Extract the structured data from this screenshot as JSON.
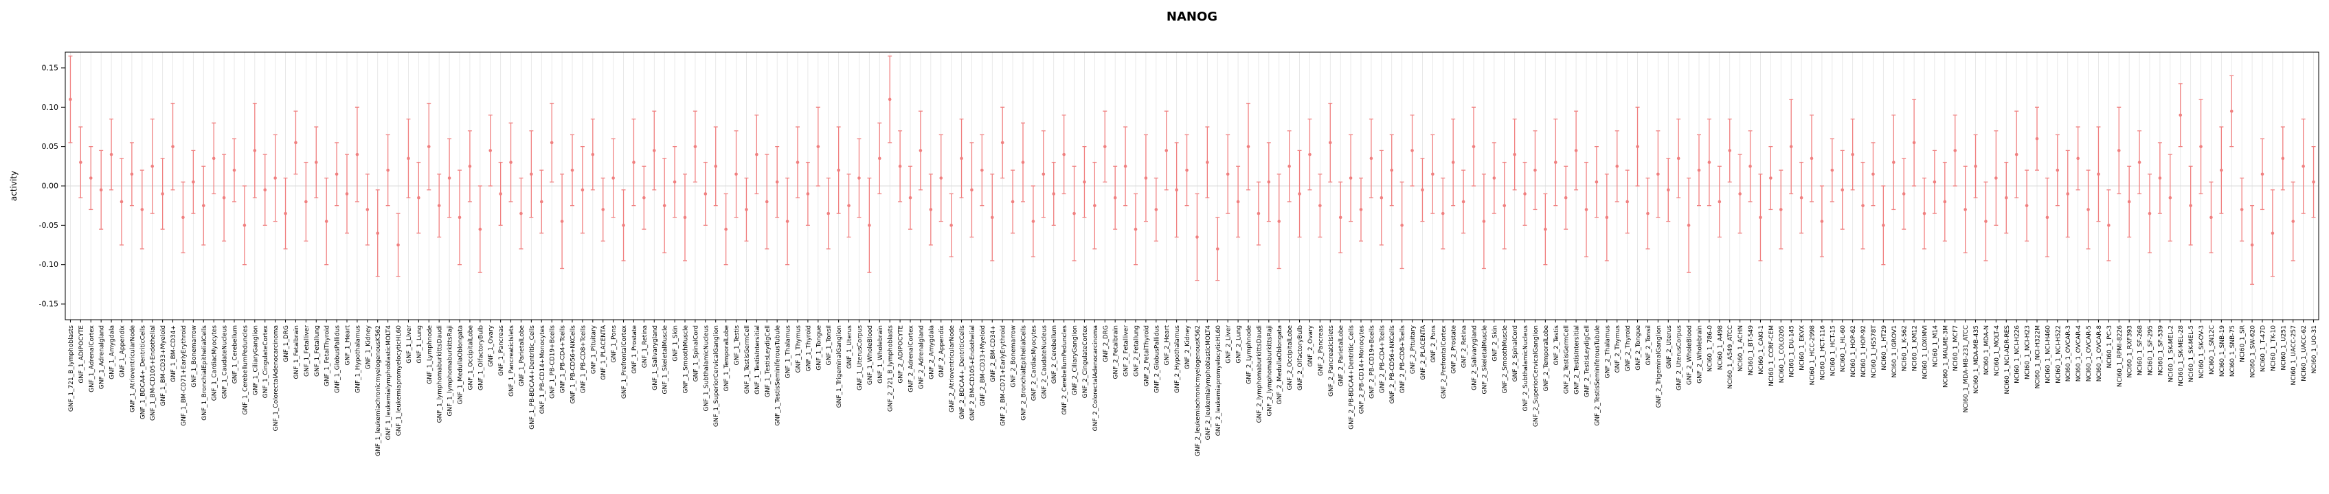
{
  "chart_data": {
    "type": "scatter",
    "title": "NANOG",
    "ylabel": "activity",
    "xlabel": "",
    "ylim": [
      -0.17,
      0.17
    ],
    "yticks": [
      -0.15,
      -0.1,
      -0.05,
      0.0,
      0.05,
      0.1,
      0.15
    ],
    "grid": true,
    "legend": "none",
    "point_color": "#f08080",
    "grid_color": "#e3e3e3",
    "axis_color": "#000000",
    "samples": [
      "GNF_1_721_B_lymphoblasts",
      "GNF_1_ADIPOCYTE",
      "GNF_1_AdrenalCortex",
      "GNF_1_Adrenalgland",
      "GNF_1_Amygdala",
      "GNF_1_Appendix",
      "GNF_1_AtrioventricularNode",
      "GNF_1_BDCA4+_DentriticCells",
      "GNF_1_BM-CD105+Endothelial",
      "GNF_1_BM-CD33+Myeloid",
      "GNF_1_BM-CD34+",
      "GNF_1_BM-CD71+EarlyErythroid",
      "GNF_1_Bonemarrow",
      "GNF_1_BronchialEpithelialCells",
      "GNF_1_CardiacMyocytes",
      "GNF_1_CaudateNucleus",
      "GNF_1_Cerebellum",
      "GNF_1_CerebellumPeduncles",
      "GNF_1_CiliaryGanglion",
      "GNF_1_CingulateCortex",
      "GNF_1_ColorectalAdenocarcinoma",
      "GNF_1_DRG",
      "GNF_1_Fetalbrain",
      "GNF_1_Fetalliver",
      "GNF_1_Fetallung",
      "GNF_1_FetalThyroid",
      "GNF_1_GlobusPallidus",
      "GNF_1_Heart",
      "GNF_1_Hypothalamus",
      "GNF_1_Kidney",
      "GNF_1_leukemiachronicmyelogenousK562",
      "GNF_1_leukemialymphoblasticMOLT4",
      "GNF_1_leukemiapromyelocyticHL60",
      "GNF_1_Liver",
      "GNF_1_Lung",
      "GNF_1_Lymphnode",
      "GNF_1_lymphomaburkittsDaudi",
      "GNF_1_lymphomaburkittsRaji",
      "GNF_1_MedullaOblongata",
      "GNF_1_OccipitalLobe",
      "GNF_1_OlfactoryBulb",
      "GNF_1_Ovary",
      "GNF_1_Pancreas",
      "GNF_1_PancreaticIslets",
      "GNF_1_ParietalLobe",
      "GNF_1_PB-BDCA4+Dentritic_Cells",
      "GNF_1_PB-CD14+Monocytes",
      "GNF_1_PB-CD19+Bcells",
      "GNF_1_PB-CD4+Tcells",
      "GNF_1_PB-CD56+NKCells",
      "GNF_1_PB-CD8+Tcells",
      "GNF_1_Pituitary",
      "GNF_1_PLACENTA",
      "GNF_1_Pons",
      "GNF_1_PrefrontalCortex",
      "GNF_1_Prostate",
      "GNF_1_Retina",
      "GNF_1_Salivarygland",
      "GNF_1_SkeletalMuscle",
      "GNF_1_Skin",
      "GNF_1_SmoothMuscle",
      "GNF_1_SpinalCord",
      "GNF_1_SubthalamicNucleus",
      "GNF_1_SuperiorCervicalGanglion",
      "GNF_1_TemporalLobe",
      "GNF_1_Testis",
      "GNF_1_TestisGermCell",
      "GNF_1_TestisIntersitial",
      "GNF_1_TestisLeydigCell",
      "GNF_1_TestisSeminiferousTubule",
      "GNF_1_Thalamus",
      "GNF_1_Thymus",
      "GNF_1_Thyroid",
      "GNF_1_Tongue",
      "GNF_1_Tonsil",
      "GNF_1_TrigeminalGanglion",
      "GNF_1_Uterus",
      "GNF_1_UterusCorpus",
      "GNF_1_WholeBlood",
      "GNF_1_Wholebrain",
      "GNF_2_721_B_lymphoblasts",
      "GNF_2_ADIPOCYTE",
      "GNF_2_AdrenalCortex",
      "GNF_2_Adrenalgland",
      "GNF_2_Amygdala",
      "GNF_2_Appendix",
      "GNF_2_AtrioventricularNode",
      "GNF_2_BDCA4+_DentriticCells",
      "GNF_2_BM-CD105+Endothelial",
      "GNF_2_BM-CD33+Myeloid",
      "GNF_2_BM-CD34+",
      "GNF_2_BM-CD71+EarlyErythroid",
      "GNF_2_Bonemarrow",
      "GNF_2_BronchialEpithelialCells",
      "GNF_2_CardiacMyocytes",
      "GNF_2_CaudateNucleus",
      "GNF_2_Cerebellum",
      "GNF_2_CerebellumPeduncles",
      "GNF_2_CiliaryGanglion",
      "GNF_2_CingulateCortex",
      "GNF_2_ColorectalAdenocarcinoma",
      "GNF_2_DRG",
      "GNF_2_Fetalbrain",
      "GNF_2_Fetalliver",
      "GNF_2_Fetallung",
      "GNF_2_FetalThyroid",
      "GNF_2_GlobusPallidus",
      "GNF_2_Heart",
      "GNF_2_Hypothalamus",
      "GNF_2_Kidney",
      "GNF_2_leukemiachronicmyelogenousK562",
      "GNF_2_leukemialymphoblasticMOLT4",
      "GNF_2_leukemiapromyelocyticHL60",
      "GNF_2_Liver",
      "GNF_2_Lung",
      "GNF_2_Lymphnode",
      "GNF_2_lymphomaburkittsDaudi",
      "GNF_2_lymphomaburkittsRaji",
      "GNF_2_MedullaOblongata",
      "GNF_2_OccipitalLobe",
      "GNF_2_OlfactoryBulb",
      "GNF_2_Ovary",
      "GNF_2_Pancreas",
      "GNF_2_PancreaticIslets",
      "GNF_2_ParietalLobe",
      "GNF_2_PB-BDCA4+Dentritic_Cells",
      "GNF_2_PB-CD14+Monocytes",
      "GNF_2_PB-CD19+Bcells",
      "GNF_2_PB-CD4+Tcells",
      "GNF_2_PB-CD56+NKCells",
      "GNF_2_PB-CD8+Tcells",
      "GNF_2_Pituitary",
      "GNF_2_PLACENTA",
      "GNF_2_Pons",
      "GNF_2_PrefrontalCortex",
      "GNF_2_Prostate",
      "GNF_2_Retina",
      "GNF_2_Salivarygland",
      "GNF_2_SkeletalMuscle",
      "GNF_2_Skin",
      "GNF_2_SmoothMuscle",
      "GNF_2_SpinalCord",
      "GNF_2_SubthalamicNucleus",
      "GNF_2_SuperiorCervicalGanglion",
      "GNF_2_TemporalLobe",
      "GNF_2_Testis",
      "GNF_2_TestisGermCell",
      "GNF_2_TestisIntersitial",
      "GNF_2_TestisLeydigCell",
      "GNF_2_TestisSeminiferousTubule",
      "GNF_2_Thalamus",
      "GNF_2_Thymus",
      "GNF_2_Thyroid",
      "GNF_2_Tongue",
      "GNF_2_Tonsil",
      "GNF_2_TrigeminalGanglion",
      "GNF_2_Uterus",
      "GNF_2_UterusCorpus",
      "GNF_2_WholeBlood",
      "GNF_2_Wholebrain",
      "NCI60_1_786-0",
      "NCI60_1_A498",
      "NCI60_1_A549_ATCC",
      "NCI60_1_ACHN",
      "NCI60_1_BT-549",
      "NCI60_1_CAKI-1",
      "NCI60_1_CCRF-CEM",
      "NCI60_1_COLO205",
      "NCI60_1_DU-145",
      "NCI60_1_EKVX",
      "NCI60_1_HCC-2998",
      "NCI60_1_HCT-116",
      "NCI60_1_HCT-15",
      "NCI60_1_HL-60",
      "NCI60_1_HOP-62",
      "NCI60_1_HOP-92",
      "NCI60_1_HS578T",
      "NCI60_1_HT29",
      "NCI60_1_IGROV1",
      "NCI60_1_K-562",
      "NCI60_1_KM12",
      "NCI60_1_LOXIMVI",
      "NCI60_1_M14",
      "NCI60_1_MALME-3M",
      "NCI60_1_MCF7",
      "NCI60_1_MDA-MB-231_ATCC",
      "NCI60_1_MDA-MB-435",
      "NCI60_1_MDA-N",
      "NCI60_1_MOLT-4",
      "NCI60_1_NCI-ADR-RES",
      "NCI60_1_NCI-H226",
      "NCI60_1_NCI-H23",
      "NCI60_1_NCI-H322M",
      "NCI60_1_NCI-H460",
      "NCI60_1_NCI-H522",
      "NCI60_1_OVCAR-3",
      "NCI60_1_OVCAR-4",
      "NCI60_1_OVCAR-5",
      "NCI60_1_OVCAR-8",
      "NCI60_1_PC-3",
      "NCI60_1_RPMI-8226",
      "NCI60_1_RXF393",
      "NCI60_1_SF-268",
      "NCI60_1_SF-295",
      "NCI60_1_SF-539",
      "NCI60_1_SK-MEL-2",
      "NCI60_1_SK-MEL-28",
      "NCI60_1_SK-MEL-5",
      "NCI60_1_SK-OV-3",
      "NCI60_1_SN12C",
      "NCI60_1_SNB-19",
      "NCI60_1_SNB-75",
      "NCI60_1_SR",
      "NCI60_1_SW-620",
      "NCI60_1_T-47D",
      "NCI60_1_TK-10",
      "NCI60_1_U251",
      "NCI60_1_UACC-257",
      "NCI60_1_UACC-62",
      "NCI60_1_UO-31"
    ],
    "values": [
      0.11,
      0.03,
      0.01,
      -0.005,
      0.04,
      -0.02,
      0.015,
      -0.03,
      0.025,
      -0.01,
      0.05,
      -0.04,
      0.005,
      -0.025,
      0.035,
      -0.015,
      0.02,
      -0.05,
      0.045,
      -0.005,
      0.01,
      -0.035,
      0.055,
      -0.02,
      0.03,
      -0.045,
      0.015,
      -0.01,
      0.04,
      -0.03,
      -0.06,
      0.02,
      -0.075,
      0.035,
      -0.015,
      0.05,
      -0.025,
      0.01,
      -0.04,
      0.025,
      -0.055,
      0.045,
      -0.01,
      0.03,
      -0.035,
      0.015,
      -0.02,
      0.055,
      -0.045,
      0.02,
      -0.005,
      0.04,
      -0.03,
      0.01,
      -0.05,
      0.03,
      -0.015,
      0.045,
      -0.025,
      0.005,
      -0.04,
      0.05,
      -0.01,
      0.025,
      -0.055,
      0.015,
      -0.03,
      0.04,
      -0.02,
      0.005,
      -0.045,
      0.03,
      -0.01,
      0.05,
      -0.035,
      0.02,
      -0.025,
      0.01,
      -0.05,
      0.035,
      0.11,
      0.025,
      -0.015,
      0.045,
      -0.03,
      0.01,
      -0.05,
      0.035,
      -0.005,
      0.02,
      -0.04,
      0.055,
      -0.02,
      0.03,
      -0.045,
      0.015,
      -0.01,
      0.04,
      -0.035,
      0.005,
      -0.025,
      0.05,
      -0.015,
      0.025,
      -0.055,
      0.01,
      -0.03,
      0.045,
      -0.005,
      0.02,
      -0.065,
      0.03,
      -0.08,
      0.015,
      -0.02,
      0.05,
      -0.035,
      0.005,
      -0.045,
      0.025,
      -0.01,
      0.04,
      -0.025,
      0.055,
      -0.04,
      0.01,
      -0.03,
      0.035,
      -0.015,
      0.02,
      -0.05,
      0.045,
      -0.005,
      0.015,
      -0.035,
      0.03,
      -0.02,
      0.05,
      -0.045,
      0.01,
      -0.025,
      0.04,
      -0.01,
      0.02,
      -0.055,
      0.03,
      -0.015,
      0.045,
      -0.03,
      0.005,
      -0.04,
      0.025,
      -0.02,
      0.05,
      -0.035,
      0.015,
      -0.005,
      0.035,
      -0.05,
      0.02,
      0.03,
      -0.02,
      0.045,
      -0.01,
      0.025,
      -0.04,
      0.01,
      -0.03,
      0.05,
      -0.015,
      0.035,
      -0.045,
      0.02,
      -0.005,
      0.04,
      -0.025,
      0.015,
      -0.05,
      0.03,
      -0.01,
      0.055,
      -0.035,
      0.005,
      -0.02,
      0.045,
      -0.03,
      0.025,
      -0.045,
      0.01,
      -0.015,
      0.04,
      -0.025,
      0.06,
      -0.04,
      0.02,
      -0.01,
      0.035,
      -0.03,
      0.015,
      -0.05,
      0.045,
      -0.02,
      0.03,
      -0.035,
      0.01,
      -0.015,
      0.09,
      -0.025,
      0.05,
      -0.04,
      0.02,
      0.095,
      -0.03,
      -0.075,
      0.015,
      -0.06,
      0.035,
      -0.045,
      0.025,
      0.005
    ],
    "errors": [
      0.055,
      0.045,
      0.04,
      0.05,
      0.045,
      0.055,
      0.04,
      0.05,
      0.06,
      0.045,
      0.055,
      0.045,
      0.04,
      0.05,
      0.045,
      0.055,
      0.04,
      0.05,
      0.06,
      0.045,
      0.055,
      0.045,
      0.04,
      0.05,
      0.045,
      0.055,
      0.04,
      0.05,
      0.06,
      0.045,
      0.055,
      0.045,
      0.04,
      0.05,
      0.045,
      0.055,
      0.04,
      0.05,
      0.06,
      0.045,
      0.055,
      0.045,
      0.04,
      0.05,
      0.045,
      0.055,
      0.04,
      0.05,
      0.06,
      0.045,
      0.055,
      0.045,
      0.04,
      0.05,
      0.045,
      0.055,
      0.04,
      0.05,
      0.06,
      0.045,
      0.055,
      0.045,
      0.04,
      0.05,
      0.045,
      0.055,
      0.04,
      0.05,
      0.06,
      0.045,
      0.055,
      0.045,
      0.04,
      0.05,
      0.045,
      0.055,
      0.04,
      0.05,
      0.06,
      0.045,
      0.055,
      0.045,
      0.04,
      0.05,
      0.045,
      0.055,
      0.04,
      0.05,
      0.06,
      0.045,
      0.055,
      0.045,
      0.04,
      0.05,
      0.045,
      0.055,
      0.04,
      0.05,
      0.06,
      0.045,
      0.055,
      0.045,
      0.04,
      0.05,
      0.045,
      0.055,
      0.04,
      0.05,
      0.06,
      0.045,
      0.055,
      0.045,
      0.04,
      0.05,
      0.045,
      0.055,
      0.04,
      0.05,
      0.06,
      0.045,
      0.055,
      0.045,
      0.04,
      0.05,
      0.045,
      0.055,
      0.04,
      0.05,
      0.06,
      0.045,
      0.055,
      0.045,
      0.04,
      0.05,
      0.045,
      0.055,
      0.04,
      0.05,
      0.06,
      0.045,
      0.055,
      0.045,
      0.04,
      0.05,
      0.045,
      0.055,
      0.04,
      0.05,
      0.06,
      0.045,
      0.055,
      0.045,
      0.04,
      0.05,
      0.045,
      0.055,
      0.04,
      0.05,
      0.06,
      0.045,
      0.055,
      0.045,
      0.04,
      0.05,
      0.045,
      0.055,
      0.04,
      0.05,
      0.06,
      0.045,
      0.055,
      0.045,
      0.04,
      0.05,
      0.045,
      0.055,
      0.04,
      0.05,
      0.06,
      0.045,
      0.055,
      0.045,
      0.04,
      0.05,
      0.045,
      0.055,
      0.04,
      0.05,
      0.06,
      0.045,
      0.055,
      0.045,
      0.04,
      0.05,
      0.045,
      0.055,
      0.04,
      0.05,
      0.06,
      0.045,
      0.055,
      0.045,
      0.04,
      0.05,
      0.045,
      0.055,
      0.04,
      0.05,
      0.06,
      0.045,
      0.055,
      0.045,
      0.04,
      0.05,
      0.045,
      0.055,
      0.04,
      0.05,
      0.06,
      0.045
    ]
  }
}
